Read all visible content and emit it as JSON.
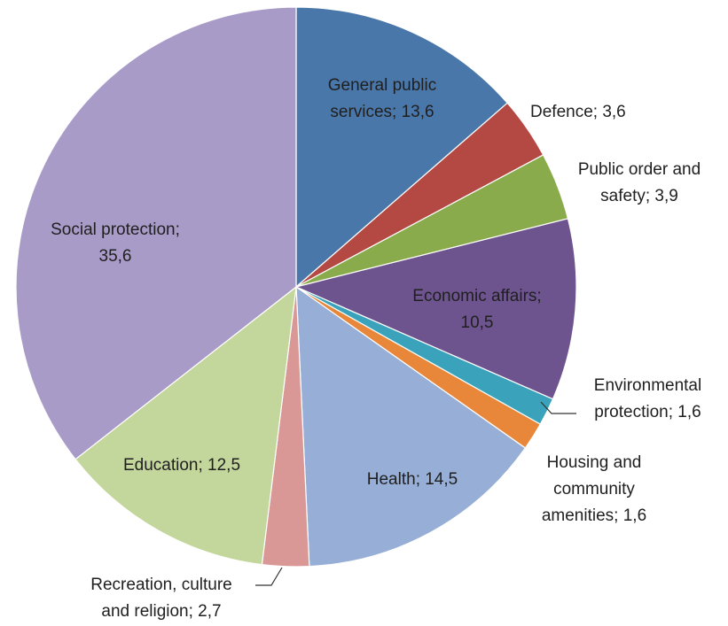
{
  "chart_data": {
    "type": "pie",
    "title": "",
    "start_angle": "12 o'clock",
    "direction": "clockwise",
    "slices": [
      {
        "name": "General public services",
        "value": 13.6,
        "color": "#4a77a9",
        "label": [
          "General public",
          "services; 13,6"
        ]
      },
      {
        "name": "Defence",
        "value": 3.6,
        "color": "#b44843",
        "label": [
          "Defence; 3,6"
        ]
      },
      {
        "name": "Public order and safety",
        "value": 3.9,
        "color": "#8aab4b",
        "label": [
          "Public order and",
          "safety; 3,9"
        ]
      },
      {
        "name": "Economic affairs",
        "value": 10.5,
        "color": "#6e548f",
        "label": [
          "Economic affairs;",
          "10,5"
        ]
      },
      {
        "name": "Environmental protection",
        "value": 1.6,
        "color": "#3aa3bb",
        "label": [
          "Environmental",
          "protection; 1,6"
        ]
      },
      {
        "name": "Housing and community amenities",
        "value": 1.6,
        "color": "#e8873a",
        "label": [
          "Housing and",
          "community",
          "amenities; 1,6"
        ]
      },
      {
        "name": "Health",
        "value": 14.5,
        "color": "#97aed6",
        "label": [
          "Health; 14,5"
        ]
      },
      {
        "name": "Recreation, culture and religion",
        "value": 2.7,
        "color": "#d99796",
        "label": [
          "Recreation, culture",
          "and religion; 2,7"
        ]
      },
      {
        "name": "Education",
        "value": 12.5,
        "color": "#c3d69b",
        "label": [
          "Education; 12,5"
        ]
      },
      {
        "name": "Social protection",
        "value": 35.6,
        "color": "#a99bc7",
        "label": [
          "Social protection;",
          "35,6"
        ]
      }
    ]
  }
}
